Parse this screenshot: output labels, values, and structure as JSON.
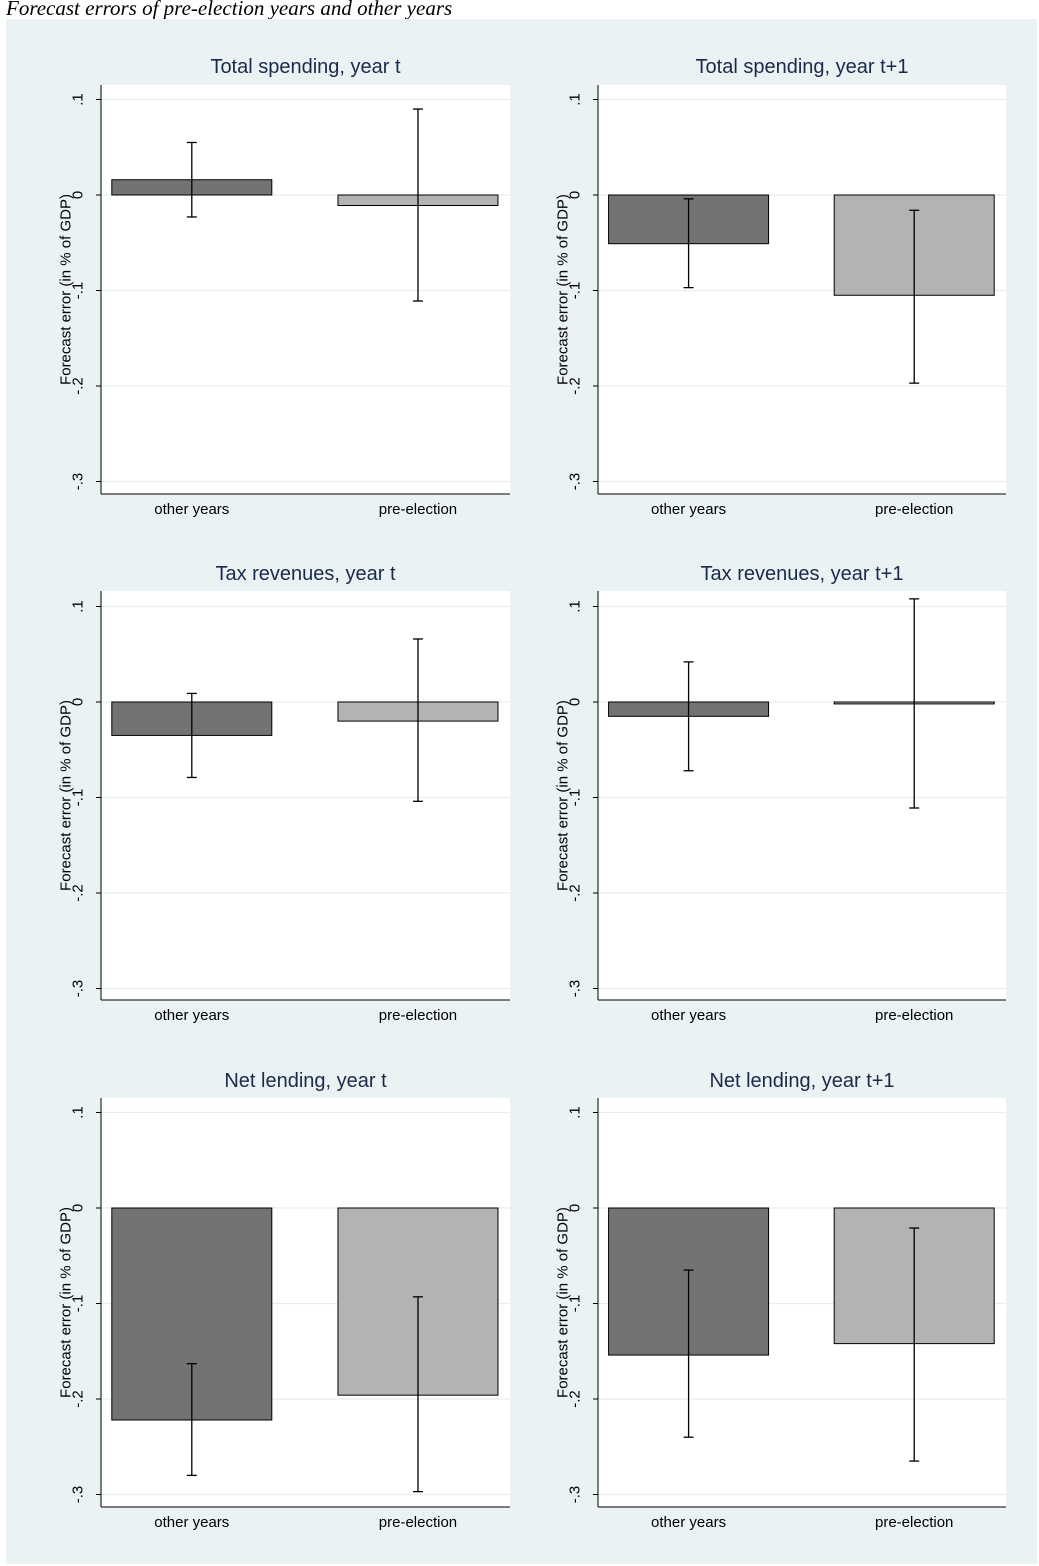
{
  "caption": "Forecast errors of pre-election years and other years",
  "chart_data": [
    {
      "type": "bar",
      "title": "Total spending, year t",
      "ylabel": "Forecast error (in % of GDP)",
      "categories": [
        "other years",
        "pre-election"
      ],
      "values": [
        0.016,
        -0.011
      ],
      "ci": [
        [
          -0.023,
          0.055
        ],
        [
          -0.111,
          0.09
        ]
      ],
      "yticks": [
        ".1",
        "0",
        "-.1",
        "-.2",
        "-.3"
      ],
      "ylim": [
        -0.3,
        0.1
      ],
      "bar_colors": [
        "#737373",
        "#b3b3b3"
      ],
      "grid": true
    },
    {
      "type": "bar",
      "title": "Total spending, year t+1",
      "ylabel": "Forecast error (in % of GDP)",
      "categories": [
        "other years",
        "pre-election"
      ],
      "values": [
        -0.051,
        -0.105
      ],
      "ci": [
        [
          -0.097,
          -0.004
        ],
        [
          -0.197,
          -0.016
        ]
      ],
      "yticks": [
        ".1",
        "0",
        "-.1",
        "-.2",
        "-.3"
      ],
      "ylim": [
        -0.3,
        0.1
      ],
      "bar_colors": [
        "#737373",
        "#b3b3b3"
      ],
      "grid": true
    },
    {
      "type": "bar",
      "title": "Tax revenues, year t",
      "ylabel": "Forecast error (in % of GDP)",
      "categories": [
        "other years",
        "pre-election"
      ],
      "values": [
        -0.035,
        -0.02
      ],
      "ci": [
        [
          -0.079,
          0.009
        ],
        [
          -0.104,
          0.066
        ]
      ],
      "yticks": [
        ".1",
        "0",
        "-.1",
        "-.2",
        "-.3"
      ],
      "ylim": [
        -0.3,
        0.1
      ],
      "bar_colors": [
        "#737373",
        "#b3b3b3"
      ],
      "grid": true
    },
    {
      "type": "bar",
      "title": "Tax revenues, year t+1",
      "ylabel": "Forecast error (in % of GDP)",
      "categories": [
        "other years",
        "pre-election"
      ],
      "values": [
        -0.015,
        -0.002
      ],
      "ci": [
        [
          -0.072,
          0.042
        ],
        [
          -0.111,
          0.108
        ]
      ],
      "yticks": [
        ".1",
        "0",
        "-.1",
        "-.2",
        "-.3"
      ],
      "ylim": [
        -0.3,
        0.1
      ],
      "bar_colors": [
        "#737373",
        "#b3b3b3"
      ],
      "grid": true
    },
    {
      "type": "bar",
      "title": "Net lending, year t",
      "ylabel": "Forecast error (in % of GDP)",
      "categories": [
        "other years",
        "pre-election"
      ],
      "values": [
        -0.222,
        -0.196
      ],
      "ci": [
        [
          -0.28,
          -0.163
        ],
        [
          -0.297,
          -0.093
        ]
      ],
      "yticks": [
        ".1",
        "0",
        "-.1",
        "-.2",
        "-.3"
      ],
      "ylim": [
        -0.3,
        0.1
      ],
      "bar_colors": [
        "#737373",
        "#b3b3b3"
      ],
      "grid": true
    },
    {
      "type": "bar",
      "title": "Net lending, year t+1",
      "ylabel": "Forecast error (in % of GDP)",
      "categories": [
        "other years",
        "pre-election"
      ],
      "values": [
        -0.154,
        -0.142
      ],
      "ci": [
        [
          -0.24,
          -0.065
        ],
        [
          -0.265,
          -0.021
        ]
      ],
      "yticks": [
        ".1",
        "0",
        "-.1",
        "-.2",
        "-.3"
      ],
      "ylim": [
        -0.3,
        0.1
      ],
      "bar_colors": [
        "#737373",
        "#b3b3b3"
      ],
      "grid": true
    }
  ]
}
